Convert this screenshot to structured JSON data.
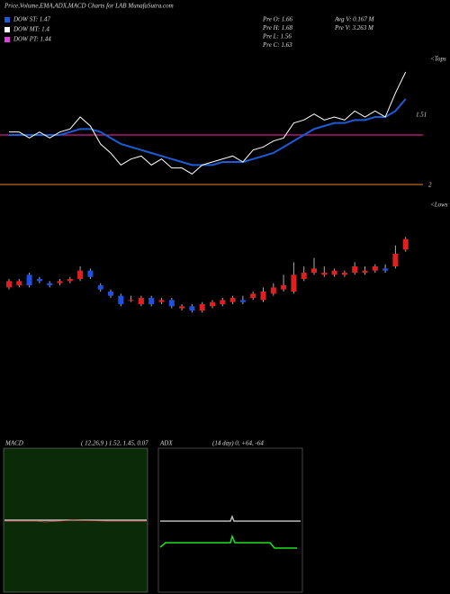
{
  "chart_data": [
    {
      "type": "line",
      "title": "Price,Volume,EMA,ADX,MACD Charts for LAB MunafaSutra.com",
      "legend": [
        {
          "name": "DOW ST: 1.47",
          "color": "#1e5bd6"
        },
        {
          "name": "DOW MT: 1.4",
          "color": "#ffffff"
        },
        {
          "name": "DOW PT: 1.44",
          "color": "#e040e0"
        }
      ],
      "info": [
        "Pre  O: 1.66",
        "Pre  H: 1.68",
        "Pre  L: 1.56",
        "Pre  C: 1.63",
        "Avg V: 0.167 M",
        "Pre  V: 3.263 M"
      ],
      "annotations": [
        "<Tops",
        "1.51",
        "2"
      ],
      "ylim": [
        1.4,
        1.85
      ],
      "levels": [
        {
          "value": 1.58,
          "color": "#d0208a"
        },
        {
          "value": 1.415,
          "color": "#c06a1a"
        }
      ],
      "series": [
        {
          "name": "EMA",
          "color": "#1e5bd6",
          "values": [
            1.58,
            1.58,
            1.58,
            1.58,
            1.58,
            1.58,
            1.59,
            1.6,
            1.6,
            1.59,
            1.57,
            1.55,
            1.54,
            1.53,
            1.52,
            1.51,
            1.5,
            1.49,
            1.48,
            1.48,
            1.48,
            1.49,
            1.49,
            1.49,
            1.5,
            1.51,
            1.52,
            1.54,
            1.56,
            1.58,
            1.6,
            1.61,
            1.62,
            1.62,
            1.63,
            1.63,
            1.64,
            1.64,
            1.66,
            1.7
          ]
        }
      ]
    },
    {
      "type": "candlestick",
      "annotations": [
        "<Lows"
      ],
      "ylim": [
        1.3,
        1.9
      ],
      "up_color": "#e02020",
      "down_color": "#2050e0",
      "open": [
        1.56,
        1.57,
        1.62,
        1.6,
        1.58,
        1.58,
        1.59,
        1.6,
        1.64,
        1.57,
        1.54,
        1.52,
        1.5,
        1.48,
        1.51,
        1.49,
        1.5,
        1.46,
        1.47,
        1.45,
        1.47,
        1.48,
        1.49,
        1.5,
        1.51,
        1.5,
        1.53,
        1.55,
        1.54,
        1.6,
        1.63,
        1.62,
        1.62,
        1.62,
        1.63,
        1.63,
        1.64,
        1.65,
        1.66,
        1.74
      ],
      "high": [
        1.6,
        1.6,
        1.63,
        1.61,
        1.59,
        1.6,
        1.61,
        1.66,
        1.65,
        1.58,
        1.55,
        1.53,
        1.52,
        1.52,
        1.52,
        1.51,
        1.51,
        1.48,
        1.48,
        1.49,
        1.5,
        1.51,
        1.52,
        1.52,
        1.54,
        1.56,
        1.58,
        1.62,
        1.68,
        1.66,
        1.7,
        1.66,
        1.65,
        1.64,
        1.68,
        1.66,
        1.67,
        1.67,
        1.76,
        1.8
      ],
      "low": [
        1.55,
        1.56,
        1.56,
        1.58,
        1.56,
        1.57,
        1.58,
        1.59,
        1.6,
        1.54,
        1.51,
        1.47,
        1.49,
        1.47,
        1.47,
        1.48,
        1.46,
        1.45,
        1.44,
        1.44,
        1.46,
        1.47,
        1.48,
        1.48,
        1.5,
        1.49,
        1.52,
        1.54,
        1.53,
        1.59,
        1.62,
        1.61,
        1.61,
        1.61,
        1.62,
        1.62,
        1.63,
        1.63,
        1.65,
        1.73
      ],
      "close": [
        1.59,
        1.59,
        1.57,
        1.59,
        1.57,
        1.59,
        1.6,
        1.64,
        1.61,
        1.55,
        1.52,
        1.48,
        1.5,
        1.51,
        1.48,
        1.5,
        1.47,
        1.47,
        1.45,
        1.48,
        1.49,
        1.5,
        1.51,
        1.49,
        1.53,
        1.54,
        1.56,
        1.57,
        1.62,
        1.63,
        1.65,
        1.63,
        1.64,
        1.63,
        1.66,
        1.64,
        1.66,
        1.64,
        1.72,
        1.79
      ]
    },
    {
      "type": "macd",
      "title": "MACD",
      "subtitle": "( 12,26,9 ) 1.52, 1.45, 0.07"
    },
    {
      "type": "adx",
      "title": "ADX",
      "subtitle": "(14 day) 0, +64, -64"
    }
  ]
}
